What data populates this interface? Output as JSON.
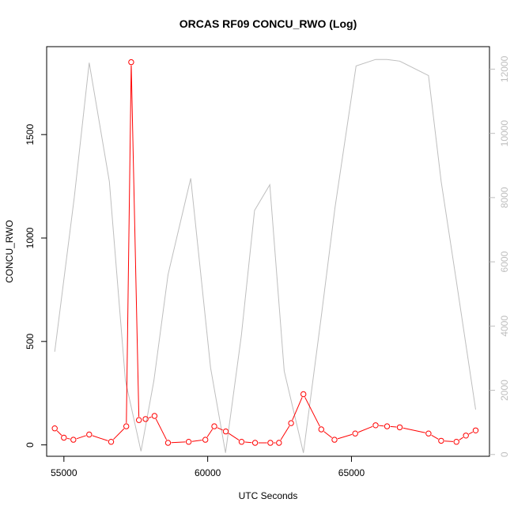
{
  "chart_data": {
    "type": "line",
    "title": "ORCAS RF09 CONCU_RWO (Log)",
    "xlabel": "UTC Seconds",
    "ylabel": "CONCU_RWO",
    "xlim": [
      54400,
      69800
    ],
    "ylim": [
      -55,
      1925
    ],
    "y2lim": [
      -55,
      12700
    ],
    "x_ticks": [
      55000,
      60000,
      65000
    ],
    "x_tick_labels": [
      "55000",
      "60000",
      "65000"
    ],
    "y_ticks": [
      0,
      500,
      1000,
      1500
    ],
    "y_tick_labels": [
      "0",
      "500",
      "1000",
      "1500"
    ],
    "y2_ticks": [
      0,
      2000,
      4000,
      6000,
      8000,
      10000,
      12000
    ],
    "y2_tick_labels": [
      "0",
      "2000",
      "4000",
      "6000",
      "8000",
      "10000",
      "12000"
    ],
    "grid": false,
    "colors": {
      "primary_series": "#ff0000",
      "secondary_series": "#bebebe",
      "axis": "#000000",
      "right_axis": "#bebebe"
    },
    "series": [
      {
        "axis": "left",
        "marker": "open-circle",
        "color": "#ff0000",
        "x": [
          54680,
          55000,
          55330,
          55880,
          56640,
          57170,
          57340,
          57610,
          57840,
          58150,
          58620,
          59340,
          59920,
          60230,
          60630,
          61180,
          61650,
          62180,
          62480,
          62900,
          63330,
          63950,
          64410,
          65130,
          65840,
          66240,
          66680,
          67680,
          68120,
          68650,
          68980,
          69320
        ],
        "y": [
          80,
          35,
          25,
          50,
          15,
          90,
          1850,
          120,
          125,
          140,
          10,
          15,
          25,
          90,
          65,
          15,
          10,
          10,
          10,
          105,
          245,
          75,
          25,
          55,
          95,
          90,
          85,
          55,
          20,
          15,
          45,
          70
        ]
      },
      {
        "axis": "right",
        "marker": "none",
        "color": "#bebebe",
        "x": [
          54680,
          55360,
          55880,
          56580,
          57140,
          57680,
          58130,
          58620,
          59410,
          60100,
          60620,
          61170,
          61630,
          62160,
          62660,
          63330,
          63950,
          64430,
          65160,
          65840,
          66240,
          66680,
          67680,
          68120,
          68630,
          69320
        ],
        "y": [
          3200,
          8000,
          12200,
          8500,
          2300,
          100,
          2300,
          5600,
          8600,
          2700,
          50,
          3700,
          7600,
          8400,
          2600,
          50,
          4300,
          7700,
          12100,
          12300,
          12300,
          12250,
          11800,
          8500,
          5500,
          1400
        ]
      }
    ]
  }
}
